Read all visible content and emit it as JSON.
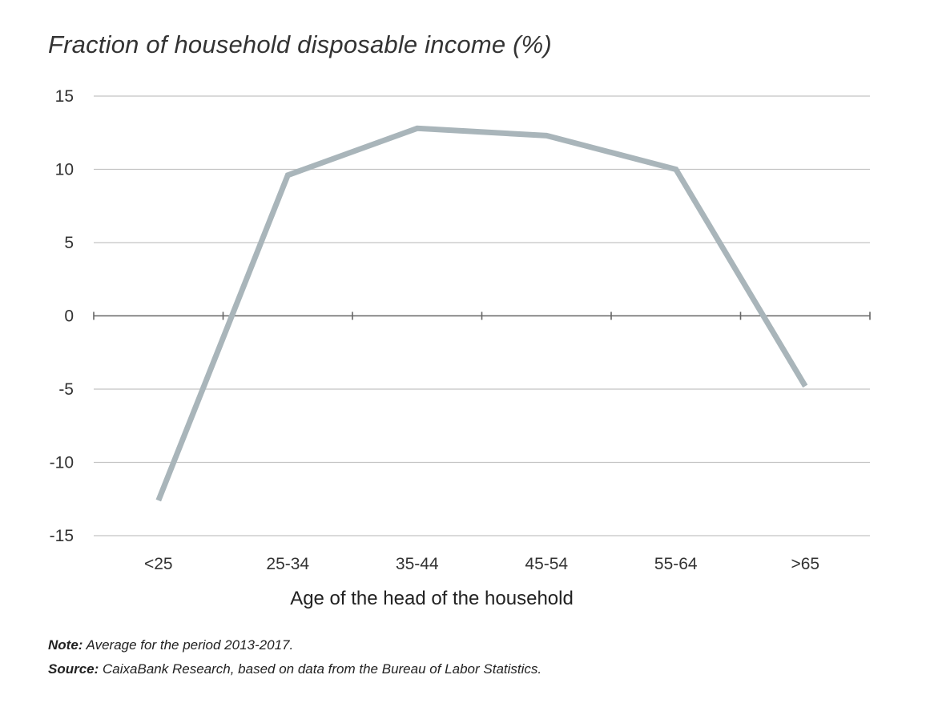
{
  "chart_data": {
    "type": "line",
    "title": "Fraction of household disposable income (%)",
    "xlabel": "Age of the head of the household",
    "ylabel": "",
    "categories": [
      "<25",
      "25-34",
      "35-44",
      "45-54",
      "55-64",
      ">65"
    ],
    "series": [
      {
        "values": [
          -12.6,
          9.6,
          12.8,
          12.3,
          10.0,
          -4.8
        ],
        "color": "#a9b5ba"
      }
    ],
    "ylim": [
      -15,
      15
    ],
    "yticks": [
      "15",
      "10",
      "5",
      "0",
      "-5",
      "-10",
      "-15"
    ],
    "grid": true
  },
  "notes": {
    "note_label": "Note:",
    "note_text": "Average for the period 2013-2017.",
    "source_label": "Source:",
    "source_text": "CaixaBank Research, based on data from the Bureau of Labor Statistics."
  }
}
